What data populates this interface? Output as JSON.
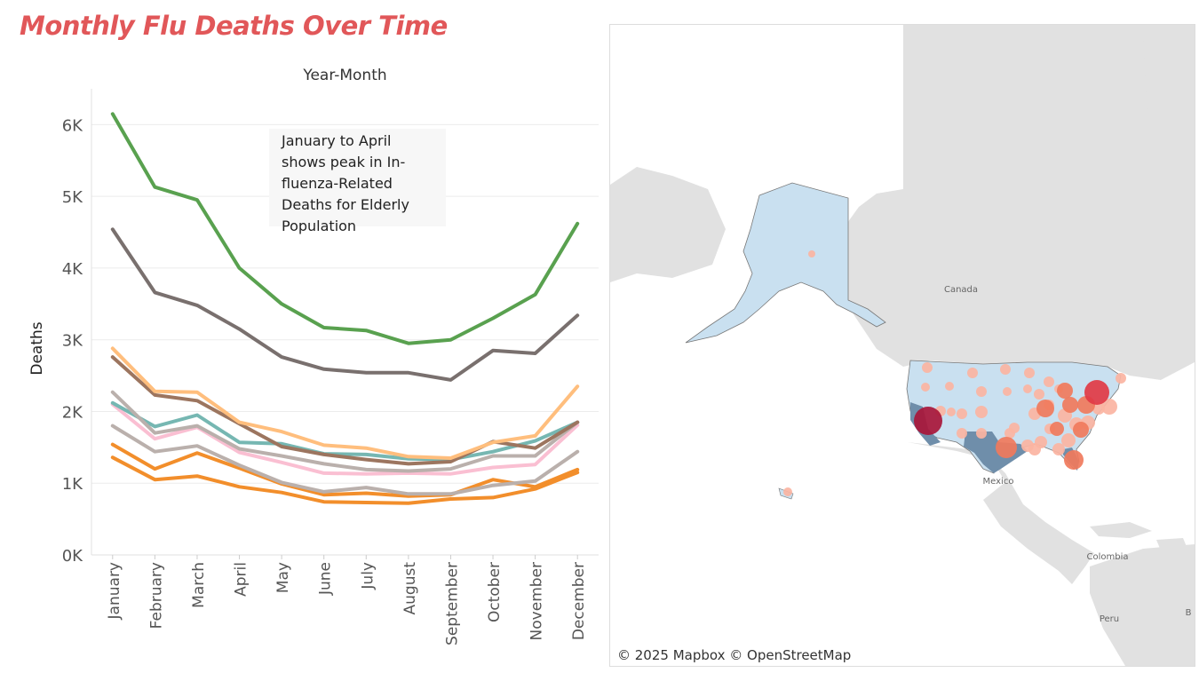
{
  "page": {
    "title": "Monthly Flu Deaths Over Time"
  },
  "chart_data": {
    "type": "line",
    "title": "Monthly Flu Deaths Over Time",
    "xlabel": "Year-Month",
    "ylabel": "Deaths",
    "ylim": [
      0,
      6500
    ],
    "yticks": [
      0,
      1000,
      2000,
      3000,
      4000,
      5000,
      6000
    ],
    "ytick_labels": [
      "0K",
      "1K",
      "2K",
      "3K",
      "4K",
      "5K",
      "6K"
    ],
    "grid": true,
    "categories": [
      "January",
      "February",
      "March",
      "April",
      "May",
      "June",
      "July",
      "August",
      "September",
      "October",
      "November",
      "December"
    ],
    "annotation": "January to April shows peak in In-fluenza-Related Deaths for Elderly Population",
    "series": [
      {
        "color": "#59a14f",
        "values": [
          6150,
          5130,
          4950,
          4000,
          3500,
          3170,
          3130,
          2950,
          3000,
          3300,
          3630,
          4620
        ]
      },
      {
        "color": "#79706e",
        "values": [
          4540,
          3660,
          3480,
          3150,
          2760,
          2590,
          2540,
          2540,
          2440,
          2850,
          2810,
          3340
        ]
      },
      {
        "color": "#ffbe7d",
        "values": [
          2880,
          2280,
          2270,
          1850,
          1720,
          1530,
          1490,
          1370,
          1350,
          1570,
          1660,
          2350
        ]
      },
      {
        "color": "#9c755f",
        "values": [
          2760,
          2230,
          2150,
          1830,
          1510,
          1400,
          1330,
          1270,
          1300,
          1580,
          1490,
          1850
        ]
      },
      {
        "color": "#bab0ac",
        "values": [
          2270,
          1700,
          1800,
          1480,
          1380,
          1270,
          1190,
          1170,
          1200,
          1380,
          1380,
          1850
        ]
      },
      {
        "color": "#76b7b2",
        "values": [
          2120,
          1790,
          1950,
          1570,
          1550,
          1410,
          1400,
          1340,
          1330,
          1440,
          1590,
          1850
        ]
      },
      {
        "color": "#fabfd2",
        "values": [
          2100,
          1620,
          1780,
          1430,
          1290,
          1140,
          1130,
          1140,
          1130,
          1220,
          1260,
          1810
        ]
      },
      {
        "color": "#bab0ac",
        "values": [
          1800,
          1440,
          1520,
          1250,
          1010,
          880,
          940,
          850,
          850,
          970,
          1030,
          1440
        ]
      },
      {
        "color": "#f28e2b",
        "values": [
          1540,
          1200,
          1420,
          1210,
          990,
          840,
          860,
          820,
          840,
          1050,
          950,
          1190
        ]
      },
      {
        "color": "#f28e2b",
        "values": [
          1360,
          1050,
          1100,
          950,
          870,
          740,
          730,
          720,
          780,
          800,
          920,
          1150
        ]
      }
    ]
  },
  "map": {
    "labels": {
      "canada": "Canada",
      "mexico": "Mexico",
      "colombia": "Colombia",
      "peru": "Peru",
      "edge": "B"
    },
    "attribution": "© 2025 Mapbox  © OpenStreetMap",
    "colors": {
      "land": "#e1e1e1",
      "us_states": "#c9e0f0",
      "us_states_dark": "#6f8eaa",
      "marker_small": "#fbb4a2",
      "marker_mid": "#f07a5c",
      "marker_large": "#e13a45",
      "marker_max": "#a8163a"
    }
  }
}
